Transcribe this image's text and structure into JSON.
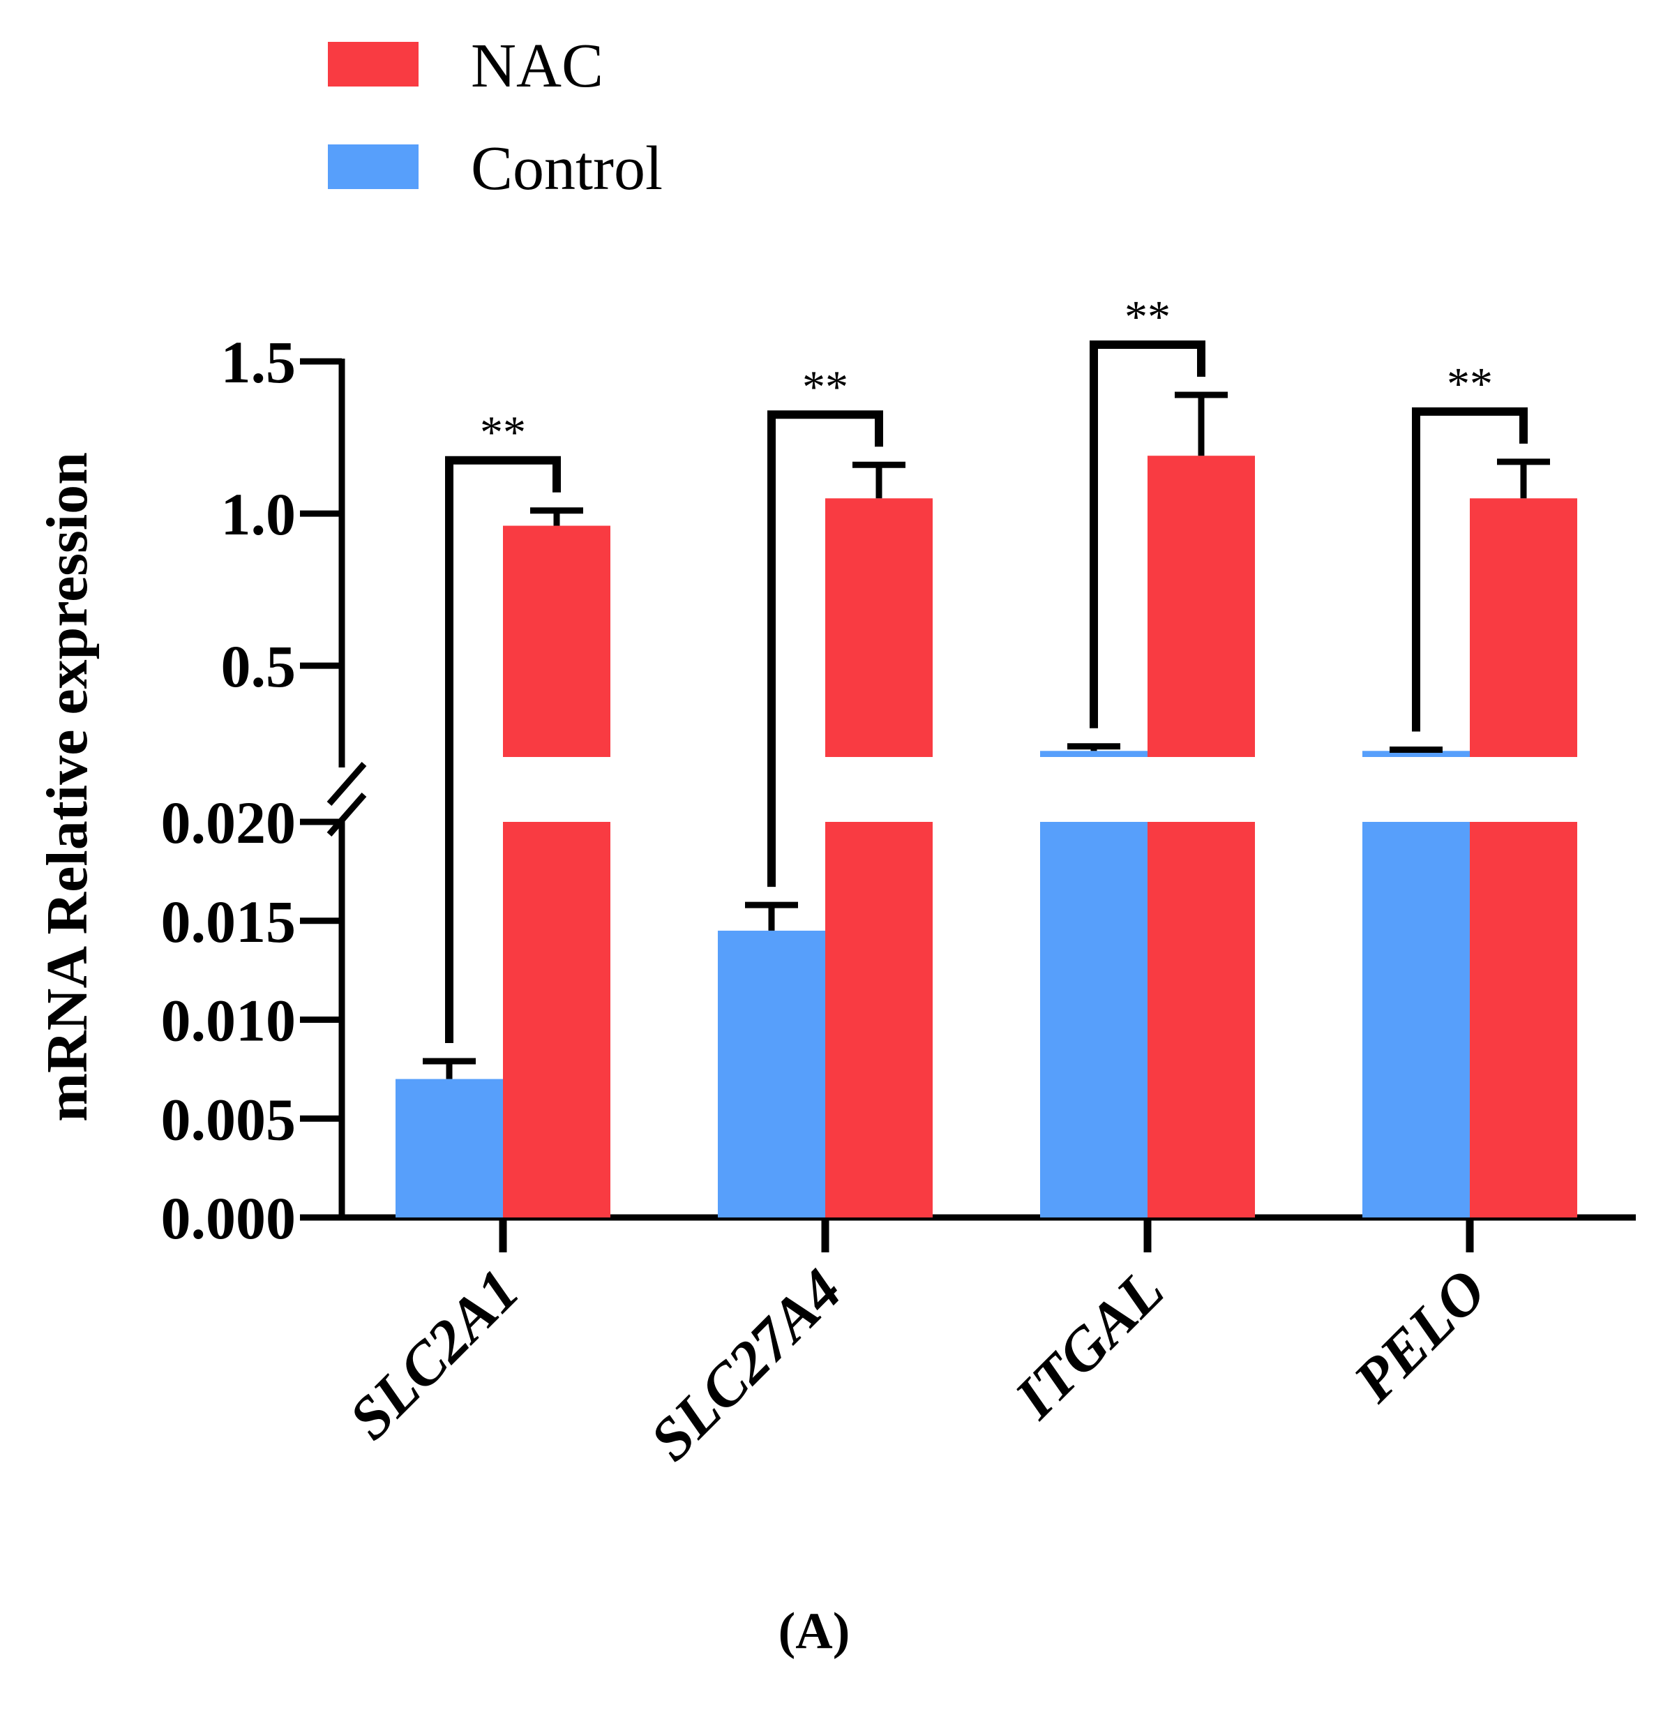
{
  "chart_data": {
    "type": "bar",
    "title": "",
    "xlabel": "",
    "ylabel": "mRNA Relative expression",
    "panel_label": "(A)",
    "categories": [
      "SLC2A1",
      "SLC27A4",
      "ITGAL",
      "PELO"
    ],
    "series": [
      {
        "name": "Control",
        "color": "#579ffb",
        "values": [
          0.007,
          0.0145,
          0.22,
          0.22
        ],
        "errors": [
          0.0009,
          0.0013,
          0.015,
          0.004
        ]
      },
      {
        "name": "NAC",
        "color": "#f93b42",
        "values": [
          0.96,
          1.05,
          1.19,
          1.05
        ],
        "errors": [
          0.05,
          0.11,
          0.2,
          0.12
        ]
      }
    ],
    "y_axis_broken": true,
    "lower_segment": {
      "ylim": [
        0,
        0.02
      ],
      "ticks": [
        "0.000",
        "0.005",
        "0.010",
        "0.015",
        "0.020"
      ]
    },
    "upper_segment": {
      "ylim": [
        0.2,
        1.5
      ],
      "ticks": [
        "0.5",
        "1.0",
        "1.5"
      ]
    },
    "significance": [
      {
        "category": "SLC2A1",
        "label": "**"
      },
      {
        "category": "SLC27A4",
        "label": "**"
      },
      {
        "category": "ITGAL",
        "label": "**"
      },
      {
        "category": "PELO",
        "label": "**"
      }
    ],
    "legend": {
      "placement": "top-left",
      "entries": [
        {
          "label": "NAC",
          "color": "#f93b42"
        },
        {
          "label": "Control",
          "color": "#579ffb"
        }
      ]
    }
  }
}
